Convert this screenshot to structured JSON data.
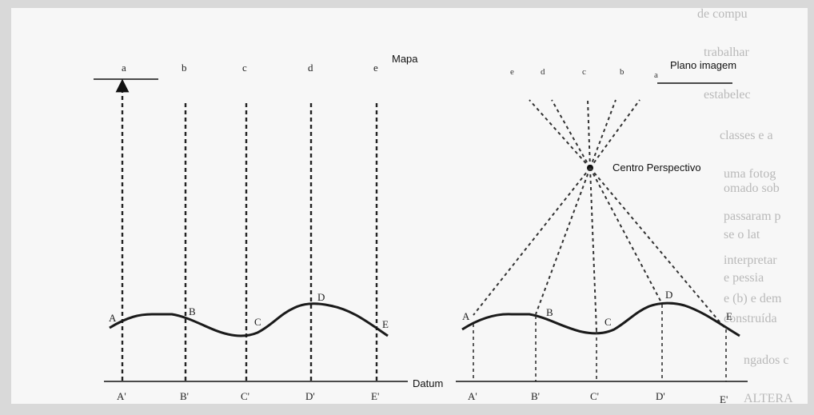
{
  "labels": {
    "mapa": "Mapa",
    "plano_imagem": "Plano imagem",
    "centro_perspectivo": "Centro Perspectivo",
    "datum": "Datum",
    "map_top": [
      "a",
      "b",
      "c",
      "d",
      "e"
    ],
    "image_top": [
      "e",
      "d",
      "c",
      "b",
      "a"
    ],
    "terrain_left": [
      "A",
      "B",
      "C",
      "D",
      "E"
    ],
    "terrain_right": [
      "A",
      "B",
      "C",
      "D",
      "E"
    ],
    "datum_left": [
      "A'",
      "B'",
      "C'",
      "D'",
      "E'"
    ],
    "datum_right": [
      "A'",
      "B'",
      "C'",
      "D'",
      "E'"
    ]
  },
  "background_text": [
    "de compu",
    "trabalhar",
    "estabelec",
    "classes e a",
    "uma fotog",
    "omado sob",
    "passaram p",
    "se o lat",
    "interpretar",
    "e pessia",
    "e (b) e dem",
    "construída",
    "ngados c",
    "ALTERA"
  ]
}
